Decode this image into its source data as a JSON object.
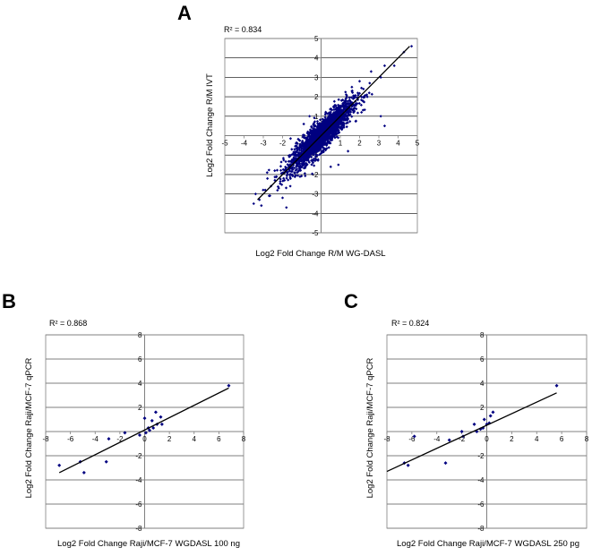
{
  "chart_data": [
    {
      "type": "scatter",
      "panel_label": "A",
      "r_squared": "R² = 0.834",
      "xlabel": "Log2 Fold Change R/M WG-DASL",
      "ylabel": "Log2 Fold Change R/M IVT",
      "xlim": [
        -5,
        5
      ],
      "ylim": [
        -5,
        5
      ],
      "xticks": [
        "-5",
        "-4",
        "-3",
        "-2",
        "-1",
        "0",
        "1",
        "2",
        "3",
        "4",
        "5"
      ],
      "yticks": [
        "5",
        "4",
        "3",
        "2",
        "1",
        "0",
        "-1",
        "-2",
        "-3",
        "-4",
        "-5"
      ],
      "ytick_values": [
        5,
        4,
        3,
        2,
        1,
        0,
        -1,
        -2,
        -3,
        -4,
        -5
      ],
      "xtick_values": [
        -5,
        -4,
        -3,
        -2,
        -1,
        0,
        1,
        2,
        3,
        4,
        5
      ],
      "trendline": [
        [
          -3.3,
          -3.3
        ],
        [
          4.6,
          4.6
        ]
      ],
      "points": [
        [
          4.7,
          4.6
        ],
        [
          4.3,
          4.3
        ],
        [
          3.8,
          3.6
        ],
        [
          3.3,
          3.6
        ],
        [
          3.1,
          3.0
        ],
        [
          2.6,
          3.3
        ],
        [
          3.1,
          1.0
        ],
        [
          3.3,
          0.5
        ],
        [
          -3.5,
          -3.5
        ],
        [
          -3.4,
          -3.0
        ],
        [
          -3.2,
          -3.3
        ],
        [
          -3.1,
          -3.6
        ],
        [
          -2.7,
          -3.1
        ],
        [
          -2.9,
          -2.8
        ],
        [
          -2.6,
          -2.6
        ],
        [
          -2.4,
          -2.3
        ],
        [
          -2.8,
          -1.9
        ],
        [
          -1.8,
          -3.7
        ],
        [
          -2.0,
          -3.2
        ],
        [
          2.2,
          2.4
        ],
        [
          2.4,
          2.0
        ],
        [
          2.0,
          2.8
        ],
        [
          1.8,
          1.6
        ],
        [
          2.5,
          2.2
        ],
        [
          2.1,
          1.2
        ],
        [
          1.6,
          2.5
        ],
        [
          -1.6,
          -2.6
        ],
        [
          -2.2,
          -2.7
        ],
        [
          -1.9,
          -2.3
        ],
        [
          -1.3,
          -0.4
        ],
        [
          -0.9,
          0.6
        ],
        [
          -0.6,
          1.0
        ],
        [
          0.9,
          -1.5
        ],
        [
          1.4,
          -0.8
        ],
        [
          0.5,
          -1.6
        ]
      ],
      "cloud": {
        "count": 2200,
        "center": [
          0,
          0
        ],
        "slope": 0.95,
        "spread_x": 0.8,
        "spread_resid": 0.38
      }
    },
    {
      "type": "scatter",
      "panel_label": "B",
      "r_squared": "R² = 0.868",
      "xlabel": "Log2 Fold Change Raji/MCF-7 WGDASL 100 ng",
      "ylabel": "Log2 Fold Change Raji/MCF-7 qPCR",
      "xlim": [
        -8,
        8
      ],
      "ylim": [
        -8,
        8
      ],
      "xticks": [
        "-8",
        "-6",
        "-4",
        "-2",
        "0",
        "2",
        "4",
        "6",
        "8"
      ],
      "yticks": [
        "8",
        "6",
        "4",
        "2",
        "0",
        "-2",
        "-4",
        "-6",
        "-8"
      ],
      "ytick_values": [
        8,
        6,
        4,
        2,
        0,
        -2,
        -4,
        -6,
        -8
      ],
      "xtick_values": [
        -8,
        -6,
        -4,
        -2,
        0,
        2,
        4,
        6,
        8
      ],
      "trendline": [
        [
          -6.9,
          -3.4
        ],
        [
          6.8,
          3.6
        ]
      ],
      "points": [
        [
          -6.9,
          -2.8
        ],
        [
          -5.2,
          -2.5
        ],
        [
          -4.9,
          -3.4
        ],
        [
          -3.1,
          -2.5
        ],
        [
          -2.9,
          -0.6
        ],
        [
          -1.6,
          -0.1
        ],
        [
          -0.4,
          -0.3
        ],
        [
          0.0,
          1.1
        ],
        [
          0.1,
          -0.1
        ],
        [
          0.3,
          0.3
        ],
        [
          0.4,
          0.1
        ],
        [
          0.6,
          0.9
        ],
        [
          0.7,
          0.3
        ],
        [
          0.9,
          1.6
        ],
        [
          1.0,
          0.6
        ],
        [
          1.3,
          1.2
        ],
        [
          1.4,
          0.6
        ],
        [
          6.8,
          3.8
        ]
      ]
    },
    {
      "type": "scatter",
      "panel_label": "C",
      "r_squared": "R² = 0.824",
      "xlabel": "Log2 Fold Change Raji/MCF-7 WGDASL 250 pg",
      "ylabel": "Log2 Fold Change Raji/MCF-7 qPCR",
      "xlim": [
        -8,
        8
      ],
      "ylim": [
        -8,
        8
      ],
      "xticks": [
        "-8",
        "-6",
        "-4",
        "-2",
        "0",
        "2",
        "4",
        "6",
        "8"
      ],
      "yticks": [
        "8",
        "6",
        "4",
        "2",
        "0",
        "-2",
        "-4",
        "-6",
        "-8"
      ],
      "ytick_values": [
        8,
        6,
        4,
        2,
        0,
        -2,
        -4,
        -6,
        -8
      ],
      "xtick_values": [
        -8,
        -6,
        -4,
        -2,
        0,
        2,
        4,
        6,
        8
      ],
      "trendline": [
        [
          -8.0,
          -3.3
        ],
        [
          5.6,
          3.2
        ]
      ],
      "points": [
        [
          -6.6,
          -2.6
        ],
        [
          -6.3,
          -2.8
        ],
        [
          -5.8,
          -0.4
        ],
        [
          -3.3,
          -2.6
        ],
        [
          -3.0,
          -0.7
        ],
        [
          -2.0,
          0.0
        ],
        [
          -1.9,
          -0.4
        ],
        [
          -1.0,
          0.6
        ],
        [
          -0.8,
          0.0
        ],
        [
          -0.5,
          0.2
        ],
        [
          -0.3,
          0.3
        ],
        [
          -0.2,
          1.0
        ],
        [
          0.0,
          0.6
        ],
        [
          0.2,
          0.7
        ],
        [
          0.3,
          1.3
        ],
        [
          0.5,
          1.6
        ],
        [
          5.6,
          3.8
        ]
      ]
    }
  ],
  "colors": {
    "points": "#000080",
    "trendline": "#000000",
    "grid": "#000000",
    "border": "#808080"
  }
}
